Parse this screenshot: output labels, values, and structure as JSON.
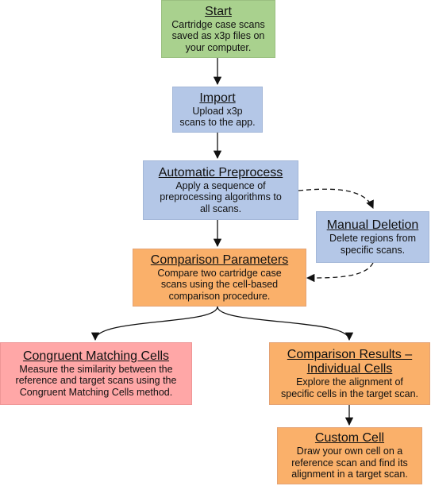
{
  "nodes": {
    "start": {
      "title": "Start",
      "desc": "Cartridge case scans\nsaved as x3p files on\nyour computer.",
      "color": "#a9d18e"
    },
    "import": {
      "title": "Import",
      "desc": "Upload x3p\nscans to the app.",
      "color": "#b4c7e7"
    },
    "preprocess": {
      "title": "Automatic Preprocess",
      "desc": "Apply a sequence of\npreprocessing algorithms to\nall scans.",
      "color": "#b4c7e7"
    },
    "deletion": {
      "title": "Manual Deletion",
      "desc": "Delete regions from\nspecific scans.",
      "color": "#b4c7e7"
    },
    "params": {
      "title": "Comparison Parameters",
      "desc": "Compare two cartridge case\nscans using the cell-based\ncomparison procedure.",
      "color": "#fab06a"
    },
    "cmc": {
      "title": "Congruent Matching Cells",
      "desc": "Measure the similarity between the\nreference and target scans using the\nCongruent Matching Cells method.",
      "color": "#ffa7a7"
    },
    "results": {
      "title_line1": "Comparison Results –",
      "title_line2": "Individual Cells",
      "desc": "Explore the alignment of\nspecific cells in the target scan.",
      "color": "#fab06a"
    },
    "custom": {
      "title": "Custom Cell",
      "desc": "Draw your own cell on a\nreference scan and find its\nalignment in a target scan.",
      "color": "#fab06a"
    }
  },
  "edges": [
    {
      "from": "start",
      "to": "import",
      "style": "solid"
    },
    {
      "from": "import",
      "to": "preprocess",
      "style": "solid"
    },
    {
      "from": "preprocess",
      "to": "params",
      "style": "solid"
    },
    {
      "from": "preprocess",
      "to": "deletion",
      "style": "dashed"
    },
    {
      "from": "deletion",
      "to": "params",
      "style": "dashed"
    },
    {
      "from": "params",
      "to": "cmc",
      "style": "solid"
    },
    {
      "from": "params",
      "to": "results",
      "style": "solid"
    },
    {
      "from": "results",
      "to": "custom",
      "style": "solid"
    }
  ]
}
